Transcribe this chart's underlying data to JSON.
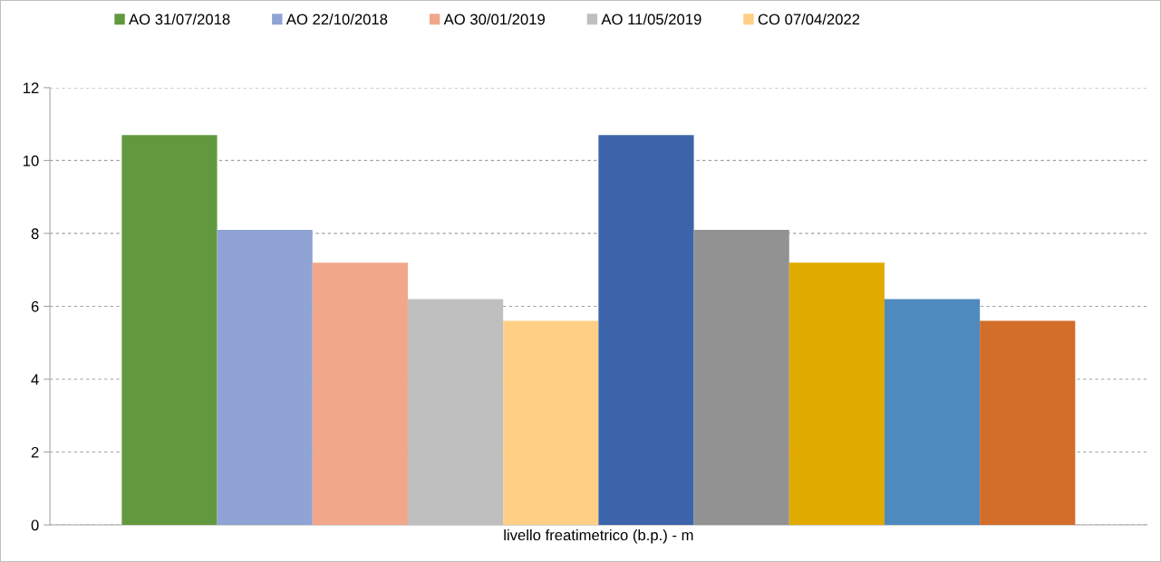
{
  "chart_data": {
    "type": "bar",
    "categories": [
      "livello freatimetrico (b.p.) - m"
    ],
    "series": [
      {
        "name": "AO 31/07/2018",
        "color": "#62993e",
        "values": [
          10.7
        ]
      },
      {
        "name": "AO 22/10/2018",
        "color": "#8fa3d4",
        "values": [
          8.1
        ]
      },
      {
        "name": "AO 30/01/2019",
        "color": "#f0a78a",
        "values": [
          7.2
        ]
      },
      {
        "name": "AO 11/05/2019",
        "color": "#bfbfbf",
        "values": [
          6.2
        ]
      },
      {
        "name": "CO 07/04/2022",
        "color": "#fecf85",
        "values": [
          5.6
        ]
      },
      {
        "color": "#3c64ab",
        "values": [
          10.7
        ]
      },
      {
        "color": "#929292",
        "values": [
          8.1
        ]
      },
      {
        "color": "#e0aa00",
        "values": [
          7.2
        ]
      },
      {
        "color": "#4f8abe",
        "values": [
          6.2
        ]
      },
      {
        "color": "#d26e2a",
        "values": [
          5.6
        ]
      }
    ],
    "ylim": [
      0,
      12
    ],
    "yticks": [
      0,
      2,
      4,
      6,
      8,
      10,
      12
    ],
    "grid": "y",
    "legend": "top"
  }
}
